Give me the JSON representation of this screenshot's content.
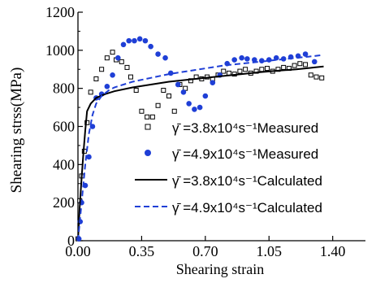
{
  "chart_data": {
    "type": "scatter",
    "title": "",
    "xlabel": "Shearing strain",
    "ylabel": "Shearing strss(MPa)",
    "xlim": [
      0,
      1.58
    ],
    "ylim": [
      0,
      1200
    ],
    "xticks": [
      0.0,
      0.35,
      0.7,
      1.05,
      1.4
    ],
    "xtick_labels": [
      "0.00",
      "0.35",
      "0.70",
      "1.05",
      "1.40"
    ],
    "yticks": [
      0,
      200,
      400,
      600,
      800,
      1000,
      1200
    ],
    "ytick_labels": [
      "0",
      "200",
      "400",
      "600",
      "800",
      "1000",
      "1200"
    ],
    "grid": false,
    "legend_position": "lower-right",
    "series": [
      {
        "name": "γ̄ =3.8x10⁴s⁻¹Measured",
        "style": "hollow-square",
        "color": "#000000",
        "points": [
          [
            0.0,
            10
          ],
          [
            0.01,
            210
          ],
          [
            0.02,
            340
          ],
          [
            0.035,
            470
          ],
          [
            0.05,
            620
          ],
          [
            0.07,
            780
          ],
          [
            0.1,
            850
          ],
          [
            0.13,
            900
          ],
          [
            0.16,
            960
          ],
          [
            0.19,
            990
          ],
          [
            0.21,
            950
          ],
          [
            0.24,
            940
          ],
          [
            0.27,
            910
          ],
          [
            0.29,
            860
          ],
          [
            0.32,
            790
          ],
          [
            0.35,
            680
          ],
          [
            0.38,
            650
          ],
          [
            0.41,
            650
          ],
          [
            0.44,
            710
          ],
          [
            0.47,
            790
          ],
          [
            0.5,
            760
          ],
          [
            0.53,
            680
          ],
          [
            0.56,
            820
          ],
          [
            0.59,
            800
          ],
          [
            0.62,
            840
          ],
          [
            0.65,
            860
          ],
          [
            0.68,
            850
          ],
          [
            0.71,
            860
          ],
          [
            0.74,
            850
          ],
          [
            0.77,
            870
          ],
          [
            0.8,
            890
          ],
          [
            0.83,
            880
          ],
          [
            0.86,
            875
          ],
          [
            0.89,
            890
          ],
          [
            0.92,
            900
          ],
          [
            0.95,
            880
          ],
          [
            0.98,
            890
          ],
          [
            1.01,
            900
          ],
          [
            1.04,
            905
          ],
          [
            1.07,
            890
          ],
          [
            1.1,
            900
          ],
          [
            1.13,
            910
          ],
          [
            1.16,
            905
          ],
          [
            1.19,
            920
          ],
          [
            1.22,
            930
          ],
          [
            1.25,
            925
          ],
          [
            1.28,
            870
          ],
          [
            1.31,
            860
          ],
          [
            1.34,
            855
          ]
        ]
      },
      {
        "name": "γ̄ =4.9x10⁴s⁻¹Measured",
        "style": "filled-circle",
        "color": "#1f3fd6",
        "points": [
          [
            0.005,
            10
          ],
          [
            0.012,
            100
          ],
          [
            0.02,
            200
          ],
          [
            0.04,
            290
          ],
          [
            0.06,
            440
          ],
          [
            0.08,
            600
          ],
          [
            0.1,
            750
          ],
          [
            0.13,
            770
          ],
          [
            0.16,
            810
          ],
          [
            0.19,
            870
          ],
          [
            0.22,
            960
          ],
          [
            0.25,
            1030
          ],
          [
            0.28,
            1050
          ],
          [
            0.31,
            1050
          ],
          [
            0.34,
            1060
          ],
          [
            0.37,
            1050
          ],
          [
            0.4,
            1020
          ],
          [
            0.44,
            980
          ],
          [
            0.48,
            960
          ],
          [
            0.51,
            880
          ],
          [
            0.55,
            820
          ],
          [
            0.58,
            780
          ],
          [
            0.61,
            720
          ],
          [
            0.64,
            690
          ],
          [
            0.67,
            700
          ],
          [
            0.7,
            760
          ],
          [
            0.74,
            830
          ],
          [
            0.78,
            870
          ],
          [
            0.82,
            930
          ],
          [
            0.86,
            950
          ],
          [
            0.9,
            960
          ],
          [
            0.93,
            955
          ],
          [
            0.97,
            950
          ],
          [
            1.01,
            945
          ],
          [
            1.05,
            950
          ],
          [
            1.09,
            960
          ],
          [
            1.13,
            955
          ],
          [
            1.17,
            965
          ],
          [
            1.21,
            970
          ],
          [
            1.25,
            980
          ],
          [
            1.3,
            940
          ]
        ]
      },
      {
        "name": "γ̄ =3.8x10⁴s⁻¹Calculated",
        "style": "solid-line",
        "color": "#000000",
        "points": [
          [
            0.0,
            0
          ],
          [
            0.01,
            180
          ],
          [
            0.02,
            330
          ],
          [
            0.03,
            460
          ],
          [
            0.04,
            580
          ],
          [
            0.05,
            680
          ],
          [
            0.07,
            720
          ],
          [
            0.1,
            750
          ],
          [
            0.15,
            770
          ],
          [
            0.2,
            785
          ],
          [
            0.3,
            805
          ],
          [
            0.4,
            820
          ],
          [
            0.5,
            835
          ],
          [
            0.6,
            845
          ],
          [
            0.7,
            855
          ],
          [
            0.8,
            865
          ],
          [
            0.9,
            875
          ],
          [
            1.0,
            885
          ],
          [
            1.1,
            893
          ],
          [
            1.2,
            900
          ],
          [
            1.3,
            910
          ],
          [
            1.35,
            915
          ]
        ]
      },
      {
        "name": "γ̄ =4.9x10⁴s⁻¹Calculated",
        "style": "dashed-line",
        "color": "#1f3fd6",
        "points": [
          [
            0.0,
            0
          ],
          [
            0.02,
            200
          ],
          [
            0.04,
            400
          ],
          [
            0.06,
            560
          ],
          [
            0.08,
            660
          ],
          [
            0.1,
            720
          ],
          [
            0.13,
            760
          ],
          [
            0.17,
            790
          ],
          [
            0.2,
            805
          ],
          [
            0.3,
            835
          ],
          [
            0.4,
            855
          ],
          [
            0.5,
            875
          ],
          [
            0.6,
            890
          ],
          [
            0.7,
            905
          ],
          [
            0.8,
            920
          ],
          [
            0.9,
            930
          ],
          [
            1.0,
            940
          ],
          [
            1.1,
            950
          ],
          [
            1.2,
            960
          ],
          [
            1.3,
            970
          ],
          [
            1.34,
            975
          ]
        ]
      }
    ]
  }
}
